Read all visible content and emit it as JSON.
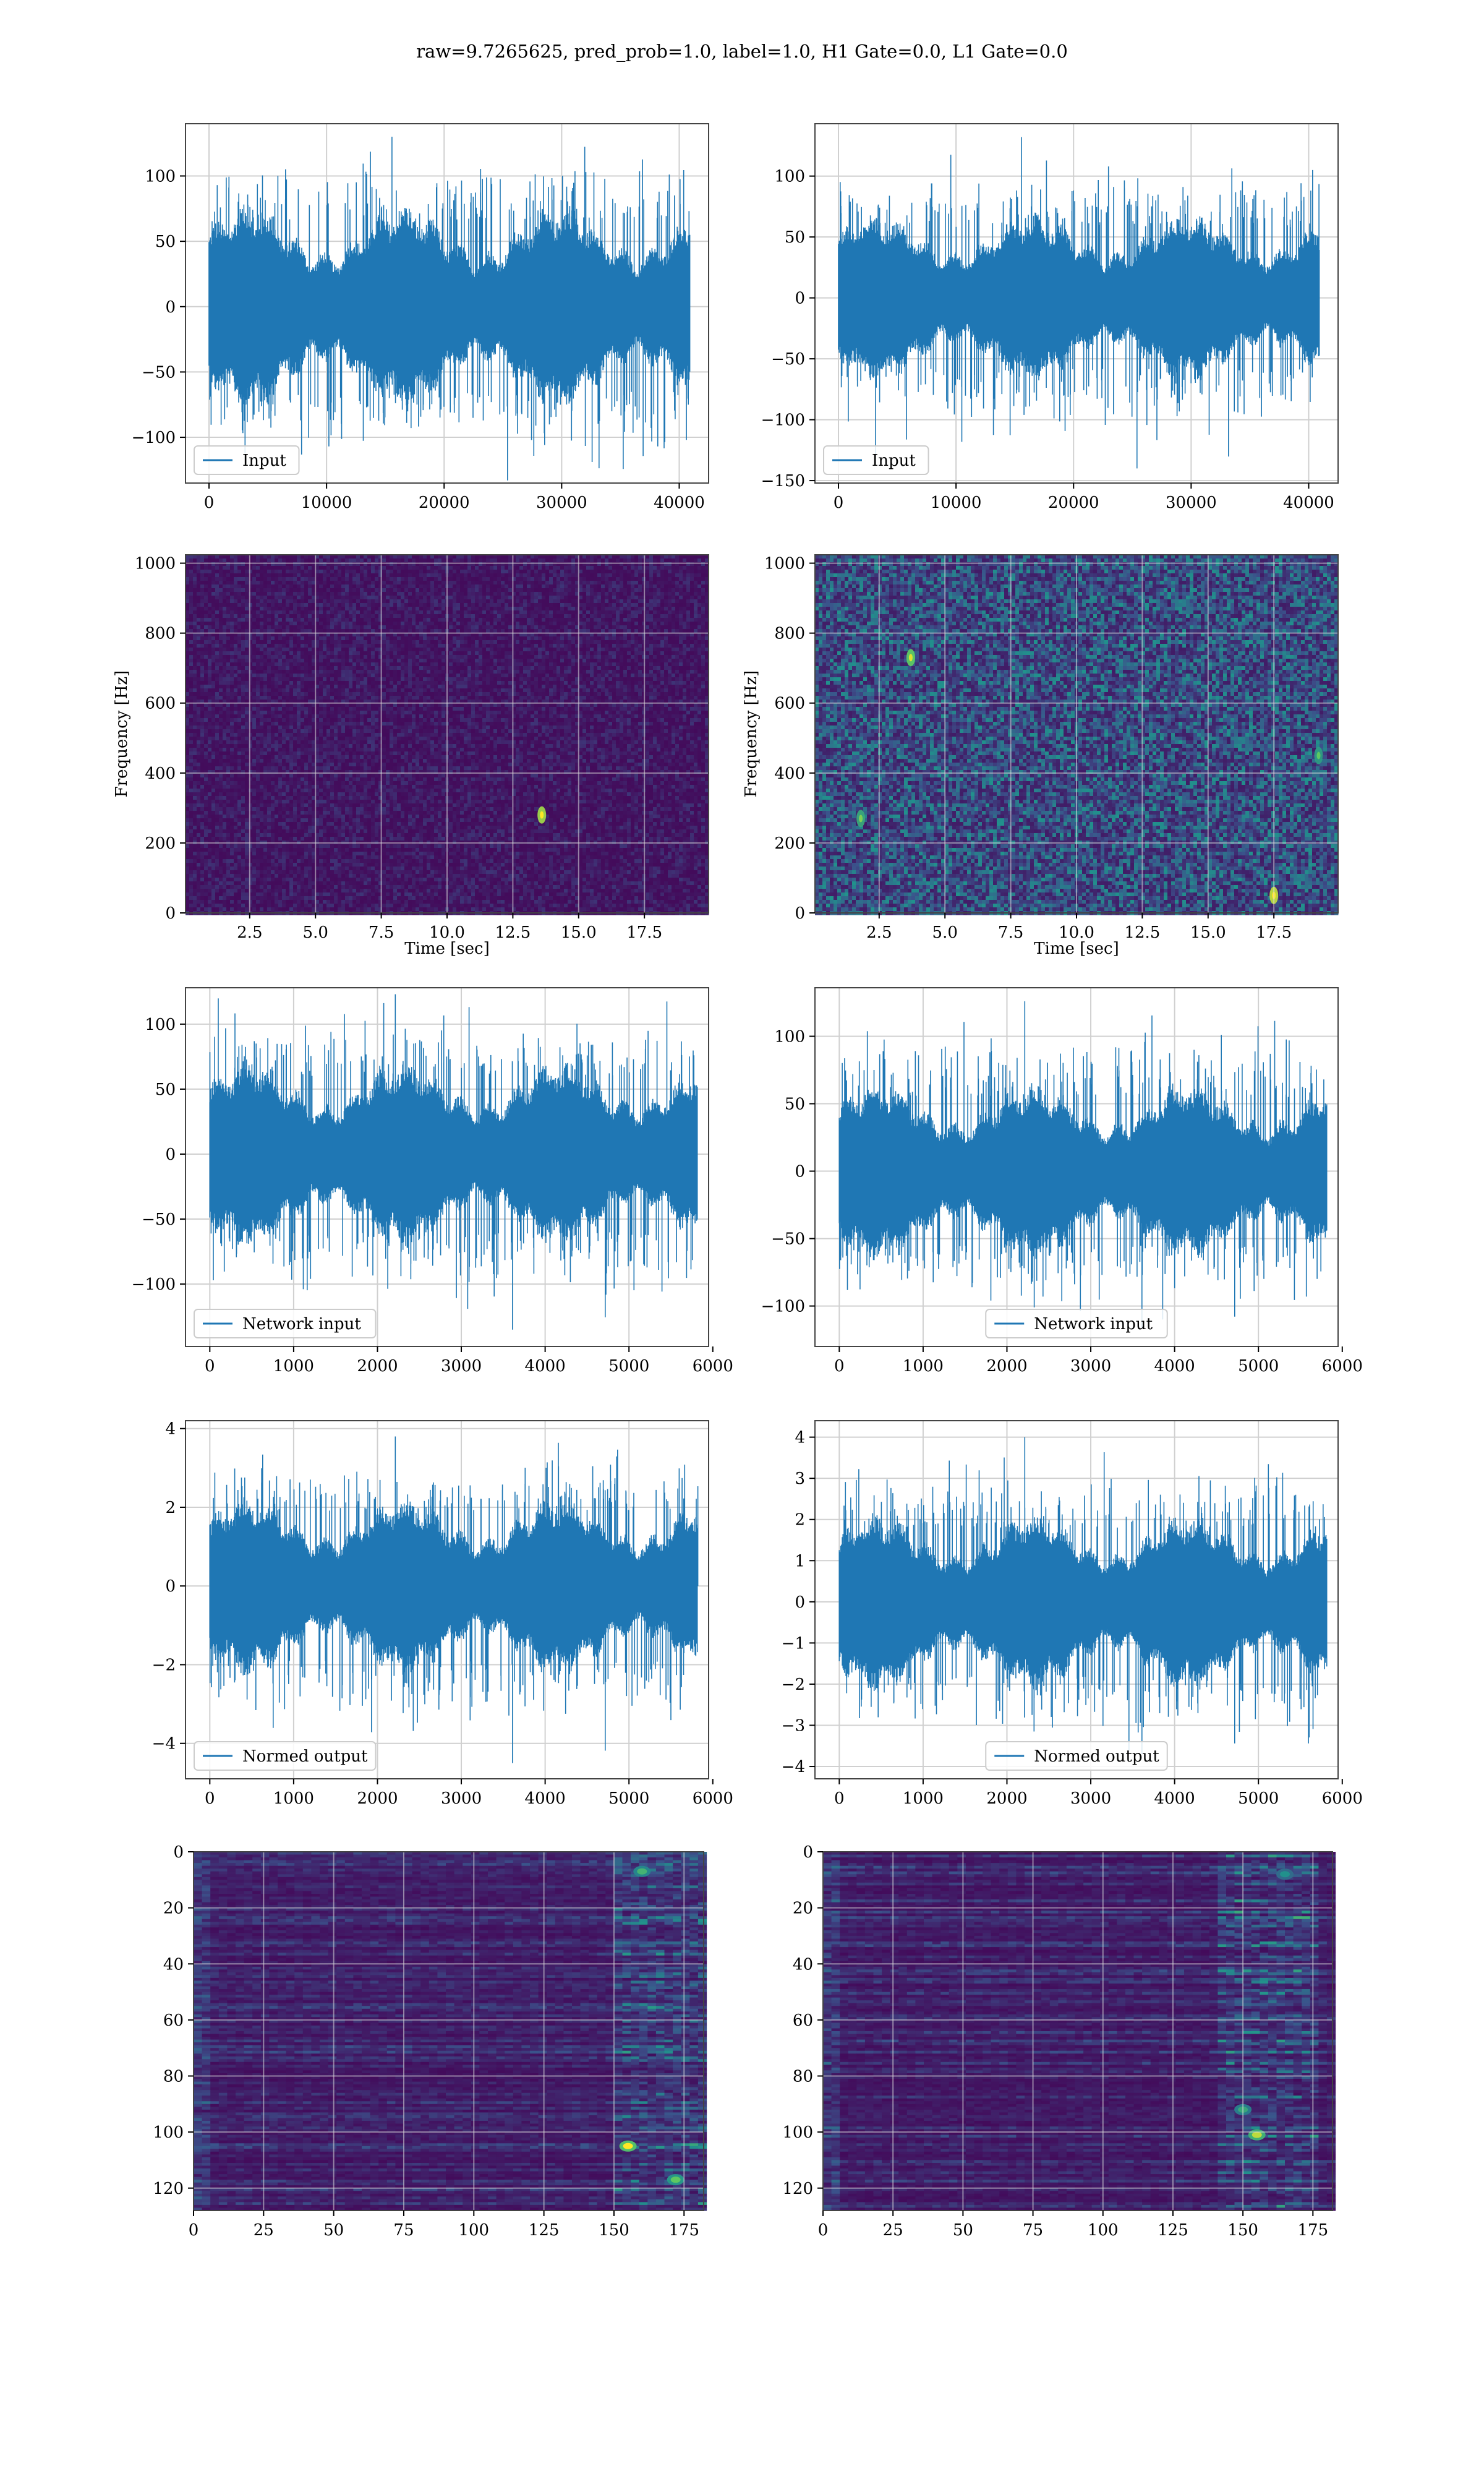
{
  "figure": {
    "suptitle": "raw=9.7265625, pred_prob=1.0, label=1.0, H1 Gate=0.0, L1 Gate=0.0"
  },
  "colors": {
    "line": "#1f77b4",
    "grid": "#d0d0d0",
    "viridis_dark": "#440154",
    "viridis_mid": "#21918c",
    "viridis_bright": "#fde725"
  },
  "chart_data": [
    {
      "id": "input-h1",
      "type": "line",
      "legend": "Input",
      "legend_loc": "lower left",
      "xlim": [
        -2000,
        42500
      ],
      "ylim": [
        -135,
        140
      ],
      "xticks": [
        0,
        10000,
        20000,
        30000,
        40000
      ],
      "yticks": [
        -100,
        -50,
        0,
        50,
        100
      ],
      "signal": {
        "x_start": 0,
        "x_end": 40960,
        "amplitude_p95": 65,
        "peak_max": 130,
        "peak_min": -133
      },
      "grid": true
    },
    {
      "id": "input-l1",
      "type": "line",
      "legend": "Input",
      "legend_loc": "lower left",
      "xlim": [
        -2000,
        42500
      ],
      "ylim": [
        -152,
        143
      ],
      "xticks": [
        0,
        10000,
        20000,
        30000,
        40000
      ],
      "yticks": [
        -150,
        -100,
        -50,
        0,
        50,
        100
      ],
      "signal": {
        "x_start": 0,
        "x_end": 40960,
        "amplitude_p95": 58,
        "peak_max": 132,
        "peak_min": -140
      },
      "grid": true
    },
    {
      "id": "spectrogram-h1",
      "type": "heatmap",
      "colormap": "viridis",
      "xlabel": "Time [sec]",
      "ylabel": "Frequency [Hz]",
      "xlim": [
        0.06,
        19.94
      ],
      "ylim": [
        0,
        1024
      ],
      "xticks": [
        2.5,
        5.0,
        7.5,
        10.0,
        12.5,
        15.0,
        17.5
      ],
      "yticks": [
        0,
        200,
        400,
        600,
        800,
        1000
      ],
      "background_level": 0.08,
      "hotspots": [
        {
          "t": 13.6,
          "f": 280,
          "level": 0.85
        }
      ],
      "grid": true
    },
    {
      "id": "spectrogram-l1",
      "type": "heatmap",
      "colormap": "viridis",
      "xlabel": "Time [sec]",
      "ylabel": "Frequency [Hz]",
      "xlim": [
        0.06,
        19.94
      ],
      "ylim": [
        0,
        1024
      ],
      "xticks": [
        2.5,
        5.0,
        7.5,
        10.0,
        12.5,
        15.0,
        17.5
      ],
      "yticks": [
        0,
        200,
        400,
        600,
        800,
        1000
      ],
      "background_level": 0.28,
      "hotspots": [
        {
          "t": 17.5,
          "f": 50,
          "level": 0.9
        },
        {
          "t": 3.7,
          "f": 730,
          "level": 0.75
        },
        {
          "t": 1.8,
          "f": 270,
          "level": 0.6
        },
        {
          "t": 19.2,
          "f": 450,
          "level": 0.55
        }
      ],
      "grid": true
    },
    {
      "id": "network-input-h1",
      "type": "line",
      "legend": "Network input",
      "legend_loc": "lower left",
      "xlim": [
        -290,
        5950
      ],
      "ylim": [
        -148,
        128
      ],
      "xticks": [
        0,
        1000,
        2000,
        3000,
        4000,
        5000,
        6000
      ],
      "yticks": [
        -100,
        -50,
        0,
        50,
        100
      ],
      "signal": {
        "x_start": 0,
        "x_end": 5823,
        "amplitude_p95": 60,
        "peak_max": 123,
        "peak_min": -135
      },
      "grid": true
    },
    {
      "id": "network-input-l1",
      "type": "line",
      "legend": "Network input",
      "legend_loc": "lower center",
      "xlim": [
        -290,
        5950
      ],
      "ylim": [
        -130,
        136
      ],
      "xticks": [
        0,
        1000,
        2000,
        3000,
        4000,
        5000,
        6000
      ],
      "yticks": [
        -100,
        -50,
        0,
        50,
        100
      ],
      "signal": {
        "x_start": 0,
        "x_end": 5823,
        "amplitude_p95": 55,
        "peak_max": 126,
        "peak_min": -116
      },
      "grid": true
    },
    {
      "id": "normed-output-h1",
      "type": "line",
      "legend": "Normed output",
      "legend_loc": "lower left",
      "xlim": [
        -290,
        5950
      ],
      "ylim": [
        -4.9,
        4.2
      ],
      "xticks": [
        0,
        1000,
        2000,
        3000,
        4000,
        5000,
        6000
      ],
      "yticks": [
        -4,
        -2,
        0,
        2,
        4
      ],
      "signal": {
        "x_start": 0,
        "x_end": 5823,
        "amplitude_p95": 1.9,
        "peak_max": 3.8,
        "peak_min": -4.5
      },
      "grid": true
    },
    {
      "id": "normed-output-l1",
      "type": "line",
      "legend": "Normed output",
      "legend_loc": "lower center",
      "xlim": [
        -290,
        5950
      ],
      "ylim": [
        -4.3,
        4.4
      ],
      "xticks": [
        0,
        1000,
        2000,
        3000,
        4000,
        5000,
        6000
      ],
      "yticks": [
        -4,
        -3,
        -2,
        -1,
        0,
        1,
        2,
        3,
        4
      ],
      "signal": {
        "x_start": 0,
        "x_end": 5823,
        "amplitude_p95": 1.8,
        "peak_max": 4.0,
        "peak_min": -3.7
      },
      "grid": true
    },
    {
      "id": "feature-map-h1",
      "type": "heatmap",
      "colormap": "viridis",
      "xlim": [
        0,
        182
      ],
      "ylim": [
        128,
        0
      ],
      "xticks": [
        0,
        25,
        50,
        75,
        100,
        125,
        150,
        175
      ],
      "yticks": [
        0,
        20,
        40,
        60,
        80,
        100,
        120
      ],
      "n_rows": 128,
      "n_cols": 182,
      "background_level": 0.12,
      "active_cols": [
        150,
        182
      ],
      "hotspots": [
        {
          "col": 155,
          "row": 105,
          "level": 1.0
        },
        {
          "col": 160,
          "row": 7,
          "level": 0.65
        },
        {
          "col": 172,
          "row": 117,
          "level": 0.75
        }
      ],
      "grid": true
    },
    {
      "id": "feature-map-l1",
      "type": "heatmap",
      "colormap": "viridis",
      "xlim": [
        0,
        182
      ],
      "ylim": [
        128,
        0
      ],
      "xticks": [
        0,
        25,
        50,
        75,
        100,
        125,
        150,
        175
      ],
      "yticks": [
        0,
        20,
        40,
        60,
        80,
        100,
        120
      ],
      "n_rows": 128,
      "n_cols": 182,
      "background_level": 0.12,
      "active_cols": [
        140,
        175
      ],
      "hotspots": [
        {
          "col": 155,
          "row": 101,
          "level": 0.9
        },
        {
          "col": 150,
          "row": 92,
          "level": 0.6
        },
        {
          "col": 165,
          "row": 8,
          "level": 0.5
        }
      ],
      "grid": true
    }
  ]
}
